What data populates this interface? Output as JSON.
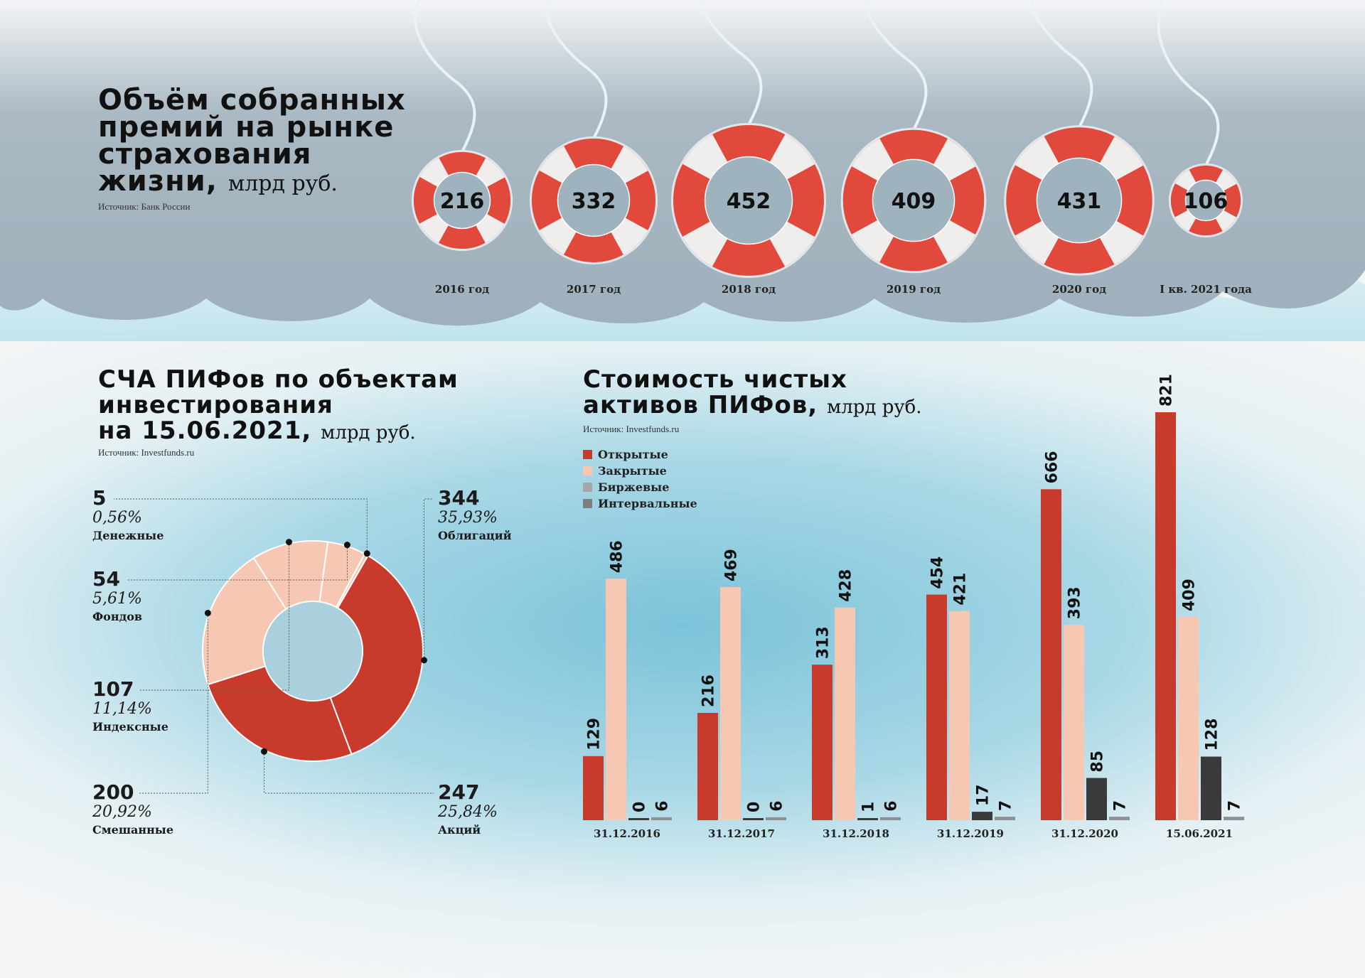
{
  "colors": {
    "open": "#c83a2c",
    "closed": "#f6c8b4",
    "exchange": "#a5a6a8",
    "interval": "#3a3a3c",
    "ring": "#e0493b",
    "ring_stripe": "#f0eeec"
  },
  "insurance": {
    "title_lines": [
      "Объём собранных",
      "премий на рынке",
      "страхования",
      "жизни,"
    ],
    "unit": "млрд руб.",
    "source": "Источник: Банк России"
  },
  "pie": {
    "title_lines": [
      "СЧА ПИФов по объектам",
      "инвестирования",
      "на 15.06.2021,"
    ],
    "unit": "млрд руб.",
    "source": "Источник: Investfunds.ru"
  },
  "bars": {
    "title_lines": [
      "Стоимость чистых",
      "активов ПИФов,"
    ],
    "unit": "млрд руб.",
    "source": "Источник: Investfunds.ru"
  },
  "chart_data": [
    {
      "type": "bar",
      "title": "Объём собранных премий на рынке страхования жизни, млрд руб.",
      "categories": [
        "2016 год",
        "2017 год",
        "2018 год",
        "2019 год",
        "2020 год",
        "I кв. 2021 года"
      ],
      "values": [
        216,
        332,
        452,
        409,
        431,
        106
      ],
      "value_labels": [
        "216",
        "332",
        "452",
        "409",
        "431",
        "106"
      ]
    },
    {
      "type": "pie",
      "title": "СЧА ПИФов по объектам инвестирования на 15.06.2021, млрд руб.",
      "slices": [
        {
          "name": "Облигаций",
          "value": 344,
          "value_label": "344",
          "pct": "35,93%",
          "color": "#c83a2c"
        },
        {
          "name": "Акций",
          "value": 247,
          "value_label": "247",
          "pct": "25,84%",
          "color": "#c83a2c"
        },
        {
          "name": "Смешанные",
          "value": 200,
          "value_label": "200",
          "pct": "20,92%",
          "color": "#f6c8b4"
        },
        {
          "name": "Индексные",
          "value": 107,
          "value_label": "107",
          "pct": "11,14%",
          "color": "#f6c8b4"
        },
        {
          "name": "Фондов",
          "value": 54,
          "value_label": "54",
          "pct": "5,61%",
          "color": "#f6c8b4"
        },
        {
          "name": "Денежные",
          "value": 5,
          "value_label": "5",
          "pct": "0,56%",
          "color": "#f6c8b4"
        }
      ]
    },
    {
      "type": "bar",
      "title": "Стоимость чистых активов ПИФов, млрд руб.",
      "categories": [
        "31.12.2016",
        "31.12.2017",
        "31.12.2018",
        "31.12.2019",
        "31.12.2020",
        "15.06.2021"
      ],
      "ylim": [
        0,
        821
      ],
      "legend": "top-left",
      "series": [
        {
          "name": "Открытые",
          "values": [
            129,
            216,
            313,
            454,
            666,
            821
          ],
          "labels": [
            "129",
            "216",
            "313",
            "454",
            "666",
            "821"
          ]
        },
        {
          "name": "Закрытые",
          "values": [
            486,
            469,
            428,
            421,
            393,
            409
          ],
          "labels": [
            "486",
            "469",
            "428",
            "421",
            "393",
            "409"
          ]
        },
        {
          "name": "Биржевые",
          "values": [
            0,
            0,
            1,
            17,
            85,
            128
          ],
          "labels": [
            "0",
            "0",
            "1",
            "17",
            "85",
            "128"
          ]
        },
        {
          "name": "Интервальные",
          "values": [
            6,
            6,
            6,
            7,
            7,
            7
          ],
          "labels": [
            "6",
            "6",
            "6",
            "7",
            "7",
            "7"
          ]
        }
      ]
    }
  ]
}
